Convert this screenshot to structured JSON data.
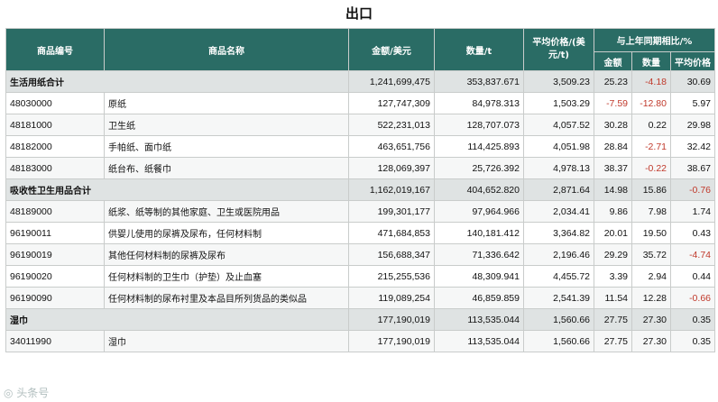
{
  "title": "出口",
  "header": {
    "code": "商品编号",
    "name": "商品名称",
    "amount": "金额/美元",
    "quantity": "数量/t",
    "avg_price": "平均价格/(美元/t)",
    "yoy_group": "与上年同期相比/%",
    "yoy_amount": "金额",
    "yoy_quantity": "数量",
    "yoy_price": "平均价格"
  },
  "rows": [
    {
      "type": "subtotal",
      "label": "生活用纸合计",
      "amount": "1,241,699,475",
      "quantity": "353,837.671",
      "price": "3,509.23",
      "yoy_amount": "25.23",
      "yoy_quantity": "-4.18",
      "yoy_price": "30.69"
    },
    {
      "type": "item",
      "code": "48030000",
      "name": "原纸",
      "amount": "127,747,309",
      "quantity": "84,978.313",
      "price": "1,503.29",
      "yoy_amount": "-7.59",
      "yoy_quantity": "-12.80",
      "yoy_price": "5.97"
    },
    {
      "type": "item",
      "code": "48181000",
      "name": "卫生纸",
      "amount": "522,231,013",
      "quantity": "128,707.073",
      "price": "4,057.52",
      "yoy_amount": "30.28",
      "yoy_quantity": "0.22",
      "yoy_price": "29.98"
    },
    {
      "type": "item",
      "code": "48182000",
      "name": "手帕纸、面巾纸",
      "amount": "463,651,756",
      "quantity": "114,425.893",
      "price": "4,051.98",
      "yoy_amount": "28.84",
      "yoy_quantity": "-2.71",
      "yoy_price": "32.42"
    },
    {
      "type": "item",
      "code": "48183000",
      "name": "纸台布、纸餐巾",
      "amount": "128,069,397",
      "quantity": "25,726.392",
      "price": "4,978.13",
      "yoy_amount": "38.37",
      "yoy_quantity": "-0.22",
      "yoy_price": "38.67"
    },
    {
      "type": "subtotal",
      "label": "吸收性卫生用品合计",
      "amount": "1,162,019,167",
      "quantity": "404,652.820",
      "price": "2,871.64",
      "yoy_amount": "14.98",
      "yoy_quantity": "15.86",
      "yoy_price": "-0.76"
    },
    {
      "type": "item",
      "code": "48189000",
      "name": "纸浆、纸等制的其他家庭、卫生或医院用品",
      "amount": "199,301,177",
      "quantity": "97,964.966",
      "price": "2,034.41",
      "yoy_amount": "9.86",
      "yoy_quantity": "7.98",
      "yoy_price": "1.74"
    },
    {
      "type": "item",
      "code": "96190011",
      "name": "供婴儿使用的尿裤及尿布，任何材料制",
      "amount": "471,684,853",
      "quantity": "140,181.412",
      "price": "3,364.82",
      "yoy_amount": "20.01",
      "yoy_quantity": "19.50",
      "yoy_price": "0.43"
    },
    {
      "type": "item",
      "code": "96190019",
      "name": "其他任何材料制的尿裤及尿布",
      "amount": "156,688,347",
      "quantity": "71,336.642",
      "price": "2,196.46",
      "yoy_amount": "29.29",
      "yoy_quantity": "35.72",
      "yoy_price": "-4.74"
    },
    {
      "type": "item",
      "code": "96190020",
      "name": "任何材料制的卫生巾（护垫）及止血塞",
      "amount": "215,255,536",
      "quantity": "48,309.941",
      "price": "4,455.72",
      "yoy_amount": "3.39",
      "yoy_quantity": "2.94",
      "yoy_price": "0.44"
    },
    {
      "type": "item",
      "code": "96190090",
      "name": "任何材料制的尿布衬里及本品目所列货品的类似品",
      "amount": "119,089,254",
      "quantity": "46,859.859",
      "price": "2,541.39",
      "yoy_amount": "11.54",
      "yoy_quantity": "12.28",
      "yoy_price": "-0.66"
    },
    {
      "type": "subtotal",
      "label": "湿巾",
      "amount": "177,190,019",
      "quantity": "113,535.044",
      "price": "1,560.66",
      "yoy_amount": "27.75",
      "yoy_quantity": "27.30",
      "yoy_price": "0.35"
    },
    {
      "type": "item",
      "code": "34011990",
      "name": "湿巾",
      "amount": "177,190,019",
      "quantity": "113,535.044",
      "price": "1,560.66",
      "yoy_amount": "27.75",
      "yoy_quantity": "27.30",
      "yoy_price": "0.35"
    }
  ],
  "colors": {
    "header_bg": "#2a6c65",
    "negative": "#c0392b",
    "subtotal_bg": "#dfe3e3"
  }
}
